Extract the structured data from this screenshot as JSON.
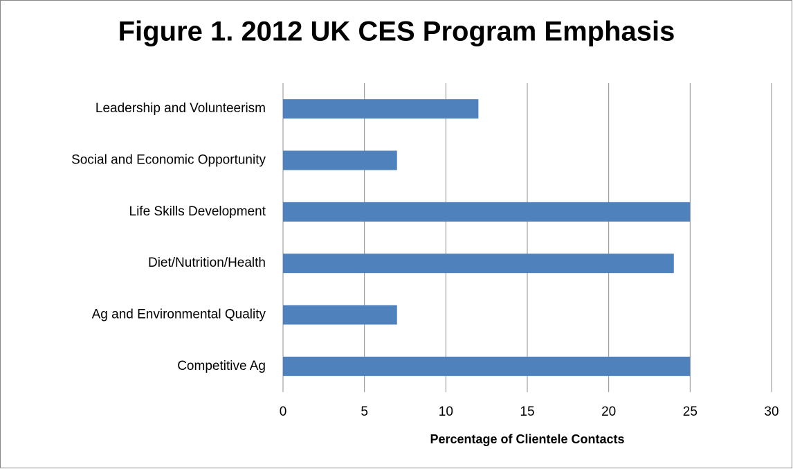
{
  "chart_data": {
    "type": "barh",
    "title": "Figure 1. 2012 UK CES Program Emphasis",
    "x_label": "Percentage of Clientele Contacts",
    "categories": [
      "Leadership and Volunteerism",
      "Social and Economic Opportunity",
      "Life Skills Development",
      "Diet/Nutrition/Health",
      "Ag and Environmental Quality",
      "Competitive Ag"
    ],
    "values": [
      12,
      7,
      25,
      24,
      7,
      25
    ],
    "color": "#4f81bd",
    "xlim": [
      0,
      30
    ],
    "xticks": [
      0,
      5,
      10,
      15,
      20,
      25,
      30
    ],
    "grid": true
  }
}
